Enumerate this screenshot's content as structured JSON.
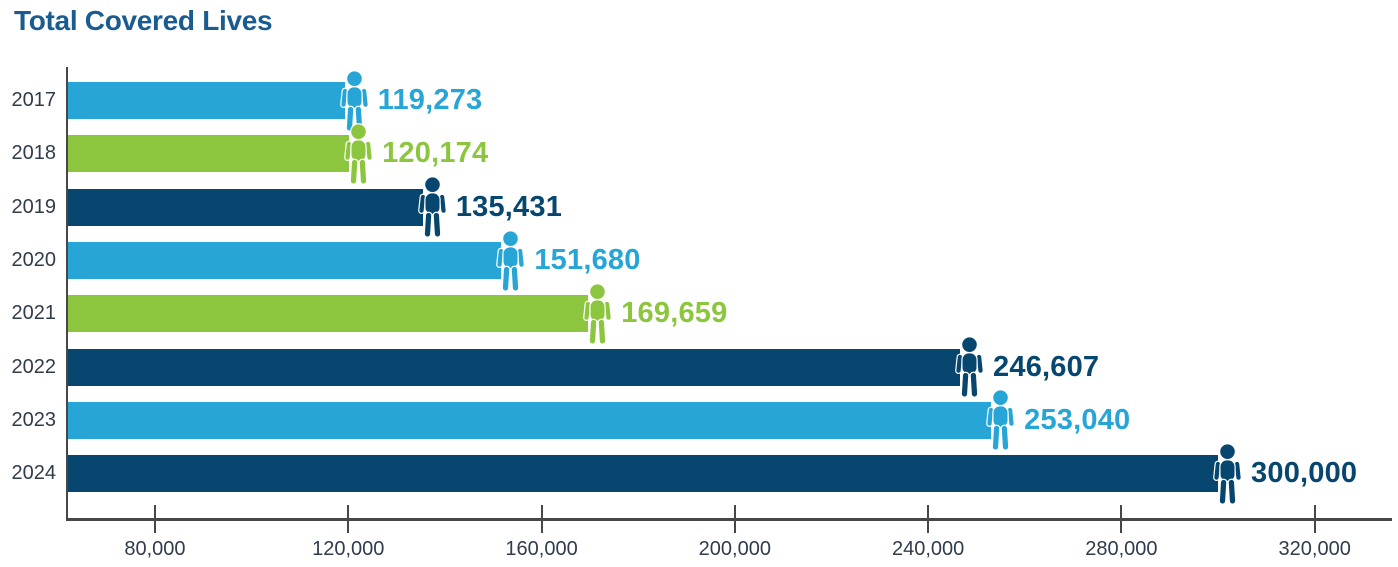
{
  "title": "Total Covered Lives",
  "colors": {
    "light_blue": "#26a5d6",
    "green": "#8cc63f",
    "navy": "#06466f",
    "title_navy": "#1b5c90",
    "axis_line": "#474747",
    "tick_label": "#303c4b"
  },
  "chart_data": {
    "type": "bar",
    "orientation": "horizontal",
    "title": "Total Covered Lives",
    "categories": [
      "2017",
      "2018",
      "2019",
      "2020",
      "2021",
      "2022",
      "2023",
      "2024"
    ],
    "values": [
      119273,
      120174,
      135431,
      151680,
      169659,
      246607,
      253040,
      300000
    ],
    "value_labels": [
      "119,273",
      "120,174",
      "135,431",
      "151,680",
      "169,659",
      "246,607",
      "253,040",
      "300,000"
    ],
    "bar_colors": [
      "light_blue",
      "green",
      "navy",
      "light_blue",
      "green",
      "navy",
      "light_blue",
      "navy"
    ],
    "bar_end_icon": "person-icon",
    "xlabel": "",
    "ylabel": "",
    "xlim": [
      62000,
      336000
    ],
    "x_ticks": [
      80000,
      120000,
      160000,
      200000,
      240000,
      280000,
      320000
    ],
    "x_tick_labels": [
      "80,000",
      "120,000",
      "160,000",
      "200,000",
      "240,000",
      "280,000",
      "320,000"
    ],
    "grid": false,
    "legend": false
  }
}
